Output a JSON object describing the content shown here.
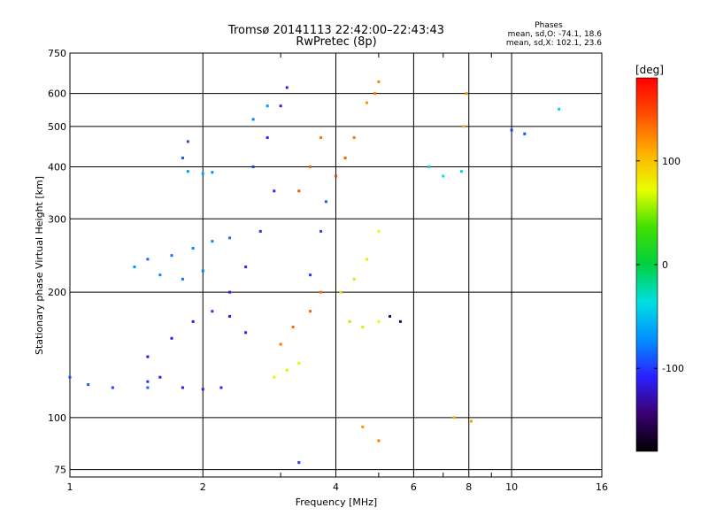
{
  "chart_data": {
    "type": "scatter",
    "title": "Tromsø 20141113 22:42:00–22:43:43",
    "subtitle": "RwPretec (8p)",
    "xlabel": "Frequency [MHz]",
    "ylabel": "Stationary phase Virtual Height [km]",
    "x_scale": "log",
    "y_scale": "log",
    "xlim": [
      1,
      16
    ],
    "ylim": [
      72,
      750
    ],
    "x_ticks": [
      1,
      2,
      4,
      6,
      8,
      10,
      16
    ],
    "x_minor_ticks": [
      3,
      5,
      7,
      9
    ],
    "y_ticks": [
      75,
      100,
      200,
      300,
      400,
      500,
      600,
      750
    ],
    "grid": true,
    "stats_header": "Phases",
    "stats_lines": [
      "mean, sd,O: -74.1, 18.6",
      "mean, sd,X: 102.1, 23.6"
    ],
    "colorbar": {
      "label": "[deg]",
      "range": [
        -180,
        180
      ],
      "ticks": [
        {
          "value": 100,
          "label": "100"
        },
        {
          "value": 0,
          "label": "0"
        },
        {
          "value": -100,
          "label": "-100"
        }
      ],
      "colors": [
        "#000000",
        "#3a0070",
        "#2a20ff",
        "#0090ff",
        "#00e0e0",
        "#00d040",
        "#40e000",
        "#e8ff00",
        "#ffb000",
        "#ff5000",
        "#ff0000"
      ]
    },
    "series": [
      {
        "x": [
          1.0,
          1.1,
          1.25,
          1.5
        ],
        "y": [
          125,
          120,
          118,
          118
        ],
        "phase": [
          -95,
          -90,
          -95,
          -85
        ]
      },
      {
        "x": [
          1.5,
          1.6,
          1.8,
          2.0,
          2.2
        ],
        "y": [
          122,
          125,
          118,
          117,
          118
        ],
        "phase": [
          -100,
          -110,
          -110,
          -110,
          -105
        ]
      },
      {
        "x": [
          1.5,
          1.7,
          1.9,
          2.1,
          2.3,
          2.5
        ],
        "y": [
          140,
          155,
          170,
          180,
          175,
          160
        ],
        "phase": [
          -120,
          -115,
          -110,
          -100,
          -110,
          -105
        ]
      },
      {
        "x": [
          1.5,
          1.7,
          1.9,
          2.1,
          2.3
        ],
        "y": [
          240,
          245,
          255,
          265,
          270
        ],
        "phase": [
          -85,
          -80,
          -75,
          -75,
          -80
        ]
      },
      {
        "x": [
          1.4,
          1.6,
          1.8,
          2.0
        ],
        "y": [
          230,
          220,
          215,
          225
        ],
        "phase": [
          -70,
          -75,
          -80,
          -80
        ]
      },
      {
        "x": [
          1.85,
          2.0,
          2.1
        ],
        "y": [
          390,
          385,
          388
        ],
        "phase": [
          -65,
          -65,
          -70
        ]
      },
      {
        "x": [
          1.8,
          1.85
        ],
        "y": [
          420,
          460
        ],
        "phase": [
          -90,
          -95
        ]
      },
      {
        "x": [
          2.3,
          2.5,
          2.7,
          2.9
        ],
        "y": [
          200,
          230,
          280,
          350
        ],
        "phase": [
          -110,
          -105,
          -100,
          -105
        ]
      },
      {
        "x": [
          2.6,
          2.8,
          3.0,
          3.1
        ],
        "y": [
          400,
          470,
          560,
          620
        ],
        "phase": [
          -100,
          -105,
          -110,
          -110
        ]
      },
      {
        "x": [
          2.6,
          2.8
        ],
        "y": [
          520,
          560
        ],
        "phase": [
          -75,
          -70
        ]
      },
      {
        "x": [
          2.9,
          3.1,
          3.3
        ],
        "y": [
          125,
          130,
          135
        ],
        "phase": [
          75,
          80,
          70
        ]
      },
      {
        "x": [
          3.0,
          3.2,
          3.5,
          3.7
        ],
        "y": [
          150,
          165,
          180,
          200
        ],
        "phase": [
          130,
          135,
          140,
          135
        ]
      },
      {
        "x": [
          3.3,
          3.5,
          3.7
        ],
        "y": [
          350,
          400,
          470
        ],
        "phase": [
          145,
          135,
          130
        ]
      },
      {
        "x": [
          3.5,
          3.7,
          3.8
        ],
        "y": [
          220,
          280,
          330
        ],
        "phase": [
          -100,
          -95,
          -90
        ]
      },
      {
        "x": [
          4.0,
          4.2,
          4.4
        ],
        "y": [
          380,
          420,
          470
        ],
        "phase": [
          150,
          140,
          130
        ]
      },
      {
        "x": [
          4.1,
          4.4,
          4.7,
          5.0
        ],
        "y": [
          200,
          215,
          240,
          280
        ],
        "phase": [
          90,
          85,
          80,
          75
        ]
      },
      {
        "x": [
          4.3,
          4.6,
          5.0
        ],
        "y": [
          170,
          165,
          170
        ],
        "phase": [
          60,
          65,
          70
        ]
      },
      {
        "x": [
          4.7,
          4.9,
          5.0
        ],
        "y": [
          570,
          600,
          640
        ],
        "phase": [
          120,
          130,
          125
        ]
      },
      {
        "x": [
          5.3,
          5.6
        ],
        "y": [
          175,
          170
        ],
        "phase": [
          -140,
          -145
        ]
      },
      {
        "x": [
          6.5,
          7.0,
          7.7
        ],
        "y": [
          400,
          380,
          390
        ],
        "phase": [
          -40,
          -35,
          -40
        ]
      },
      {
        "x": [
          7.8,
          7.9
        ],
        "y": [
          500,
          600
        ],
        "phase": [
          110,
          120
        ]
      },
      {
        "x": [
          10.0,
          10.7,
          12.8
        ],
        "y": [
          490,
          480,
          550
        ],
        "phase": [
          -100,
          -95,
          -40
        ]
      },
      {
        "x": [
          4.6,
          5.0,
          7.4,
          8.1
        ],
        "y": [
          95,
          88,
          100,
          98
        ],
        "phase": [
          120,
          130,
          110,
          115
        ]
      },
      {
        "x": [
          3.3
        ],
        "y": [
          78
        ],
        "phase": [
          -100
        ]
      }
    ]
  }
}
